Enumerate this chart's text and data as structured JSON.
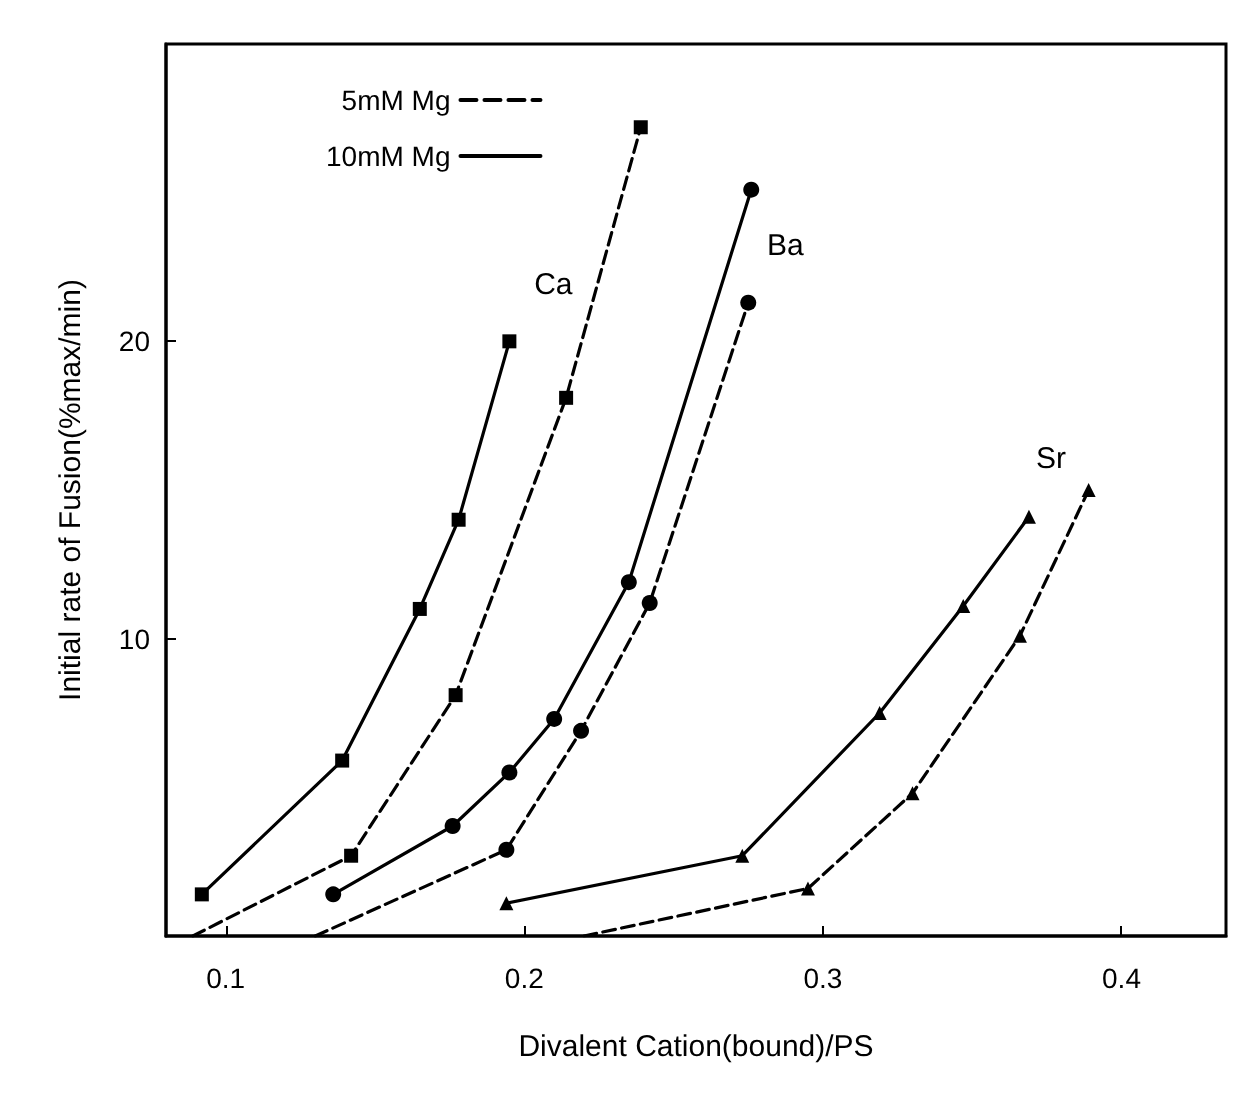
{
  "chart_data": {
    "type": "line",
    "xlabel": "Divalent Cation(bound)/PS",
    "ylabel": "Initial rate of Fusion(%max/min)",
    "xlim": [
      0.08,
      0.435
    ],
    "xticks": [
      0.1,
      0.2,
      0.3,
      0.4
    ],
    "ylim": [
      0,
      30
    ],
    "yticks": [
      10,
      20
    ],
    "grid": false,
    "legend": "top left",
    "series": [
      {
        "name": "10mM Mg",
        "color": "#000000",
        "line_style": "solid",
        "marker": "square",
        "x": [
          0.092,
          0.139,
          0.165,
          0.178,
          0.195
        ],
        "values": [
          1.4,
          5.9,
          11,
          14,
          20
        ]
      },
      {
        "name": "5mM Mg",
        "color": "#000000",
        "line_style": "dashed",
        "marker": "square",
        "x": [
          0.089,
          0.142,
          0.177,
          0.214,
          0.239
        ],
        "values": [
          0,
          2.7,
          8.1,
          18.1,
          27.2
        ]
      },
      {
        "color": "#000000",
        "line_style": "solid",
        "marker": "circle",
        "x": [
          0.136,
          0.176,
          0.195,
          0.21,
          0.235,
          0.276
        ],
        "values": [
          1.4,
          3.7,
          5.5,
          7.3,
          11.9,
          25.1
        ]
      },
      {
        "color": "#000000",
        "line_style": "dashed",
        "marker": "circle",
        "x": [
          0.13,
          0.194,
          0.219,
          0.242,
          0.275
        ],
        "values": [
          0,
          2.9,
          6.9,
          11.2,
          21.3
        ]
      },
      {
        "color": "#000000",
        "line_style": "solid",
        "marker": "triangle",
        "x": [
          0.194,
          0.273,
          0.319,
          0.347,
          0.369
        ],
        "values": [
          1.1,
          2.7,
          7.5,
          11.1,
          14.1
        ]
      },
      {
        "color": "#000000",
        "line_style": "dashed",
        "marker": "triangle",
        "x": [
          0.22,
          0.295,
          0.33,
          0.366,
          0.389
        ],
        "values": [
          0,
          1.6,
          4.8,
          10.1,
          15
        ]
      }
    ],
    "annotations": [
      "Ca",
      "Ba",
      "Sr"
    ]
  }
}
